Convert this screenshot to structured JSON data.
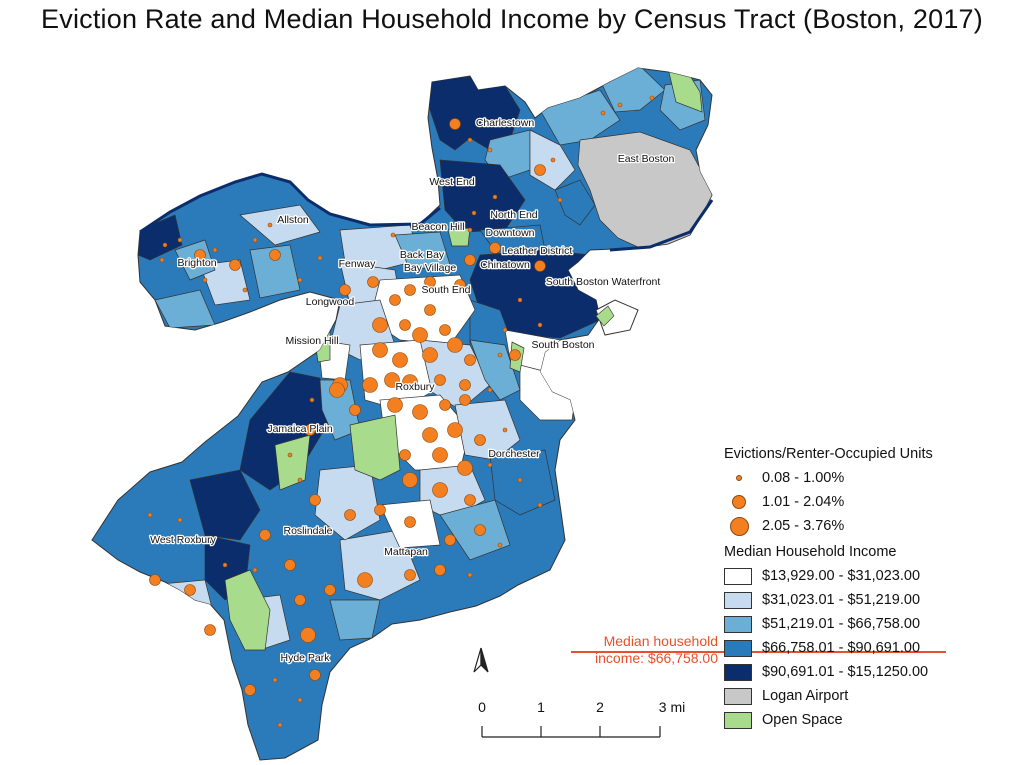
{
  "title": "Eviction Rate and Median Household Income by Census Tract (Boston, 2017)",
  "colors": {
    "income_1": "#ffffff",
    "income_2": "#c6dbef",
    "income_3": "#6baed6",
    "income_4": "#2b7bba",
    "income_5": "#0c2d6b",
    "airport": "#c8c8c8",
    "open_space": "#a8dc8c",
    "eviction_dot": "#f47f20",
    "annotation": "#e8502c"
  },
  "neighborhoods": [
    "Charlestown",
    "East Boston",
    "West End",
    "North End",
    "Allston",
    "Beacon Hill",
    "Downtown",
    "Leather District",
    "Brighton",
    "Fenway",
    "Back Bay",
    "Bay Village",
    "Chinatown",
    "South Boston Waterfront",
    "Longwood",
    "South End",
    "Mission Hill",
    "South Boston",
    "Roxbury",
    "Jamaica Plain",
    "Dorchester",
    "West Roxbury",
    "Roslindale",
    "Mattapan",
    "Hyde Park"
  ],
  "legend": {
    "evictions_title": "Evictions/Renter-Occupied Units",
    "eviction_classes": [
      {
        "label": "0.08 - 1.00%",
        "size": "small"
      },
      {
        "label": "1.01 - 2.04%",
        "size": "medium"
      },
      {
        "label": "2.05 - 3.76%",
        "size": "large"
      }
    ],
    "income_title": "Median Household Income",
    "income_classes": [
      {
        "label": "$13,929.00 - $31,023.00",
        "color": "#ffffff"
      },
      {
        "label": "$31,023.01 - $51,219.00",
        "color": "#c6dbef"
      },
      {
        "label": "$51,219.01 - $66,758.00",
        "color": "#6baed6"
      },
      {
        "label": "$66,758.01 - $90,691.00",
        "color": "#2b7bba"
      },
      {
        "label": "$90,691.01 - $15,1250.00",
        "color": "#0c2d6b"
      }
    ],
    "other_classes": [
      {
        "label": "Logan Airport",
        "color": "#c8c8c8"
      },
      {
        "label": "Open Space",
        "color": "#a8dc8c"
      }
    ]
  },
  "annotation": {
    "line1": "Median household",
    "line2": "income: $66,758.00"
  },
  "scale_bar": {
    "ticks": [
      "0",
      "1",
      "2",
      "3 mi"
    ]
  },
  "north_arrow": "north-arrow-icon"
}
